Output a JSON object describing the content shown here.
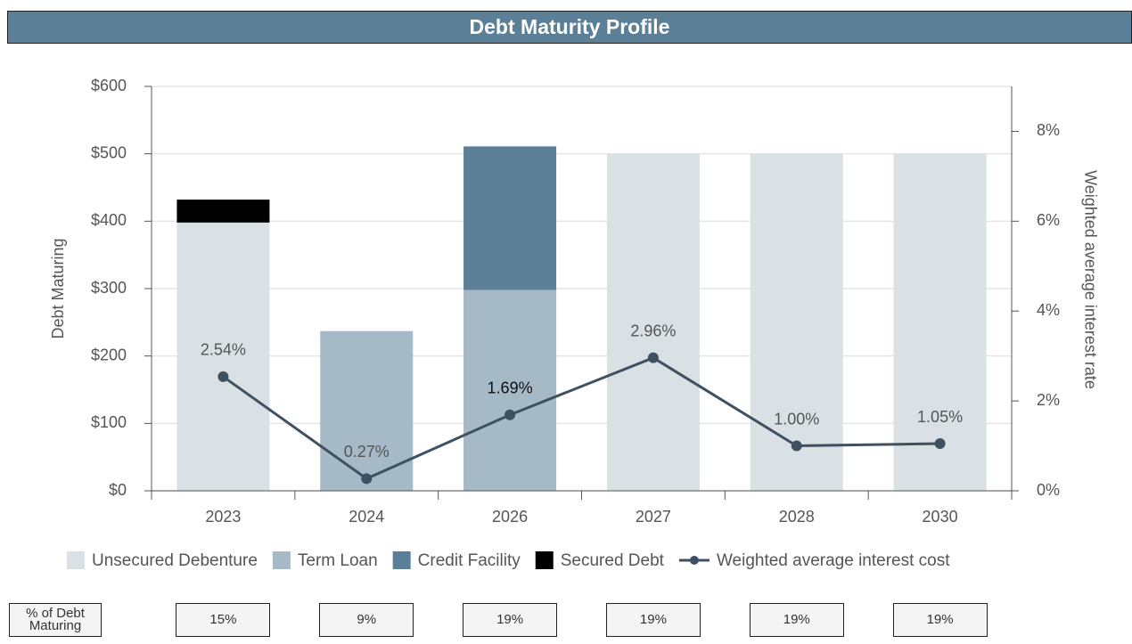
{
  "chart_data": {
    "type": "bar",
    "title": "Debt Maturity Profile",
    "categories": [
      "2023",
      "2024",
      "2026",
      "2027",
      "2028",
      "2030"
    ],
    "ylabel": "Debt Maturing",
    "y2label": "Weighted average interest rate",
    "ylim": [
      0,
      600
    ],
    "yticks": [
      {
        "value": 0,
        "label": "$0"
      },
      {
        "value": 100,
        "label": "$100"
      },
      {
        "value": 200,
        "label": "$200"
      },
      {
        "value": 300,
        "label": "$300"
      },
      {
        "value": 400,
        "label": "$400"
      },
      {
        "value": 500,
        "label": "$500"
      },
      {
        "value": 600,
        "label": "$600"
      }
    ],
    "y2lim": [
      0,
      9
    ],
    "y2ticks": [
      {
        "value": 0,
        "label": "0%"
      },
      {
        "value": 2,
        "label": "2%"
      },
      {
        "value": 4,
        "label": "4%"
      },
      {
        "value": 6,
        "label": "6%"
      },
      {
        "value": 8,
        "label": "8%"
      }
    ],
    "grid": true,
    "stacked": true,
    "legend": "bottom",
    "series": [
      {
        "name": "Unsecured Debenture",
        "type": "bar",
        "color": "#d9e1e4",
        "values": [
          398,
          0,
          0,
          500,
          500,
          500
        ]
      },
      {
        "name": "Term Loan",
        "type": "bar",
        "color": "#a5b9c6",
        "values": [
          0,
          237,
          298,
          0,
          0,
          0
        ]
      },
      {
        "name": "Credit Facility",
        "type": "bar",
        "color": "#5b7f96",
        "values": [
          0,
          0,
          213,
          0,
          0,
          0
        ]
      },
      {
        "name": "Secured Debt",
        "type": "bar",
        "color": "#000000",
        "values": [
          34,
          0,
          0,
          0,
          0,
          0
        ]
      },
      {
        "name": "Weighted average interest cost",
        "type": "line",
        "axis": "y2",
        "color": "#3f5161",
        "values": [
          2.54,
          0.27,
          1.69,
          2.96,
          1.0,
          1.05
        ],
        "value_labels": [
          "2.54%",
          "0.27%",
          "1.69%",
          "2.96%",
          "1.00%",
          "1.05%"
        ]
      }
    ],
    "table": {
      "label": "% of Debt Maturing",
      "values": [
        "15%",
        "9%",
        "19%",
        "19%",
        "19%",
        "19%"
      ]
    }
  }
}
